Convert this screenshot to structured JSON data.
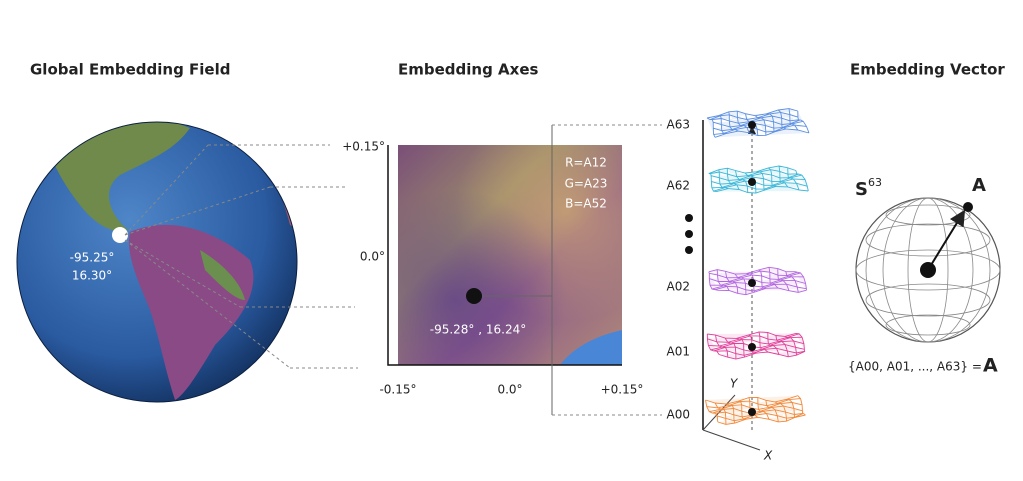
{
  "globe": {
    "title": "Global Embedding Field",
    "point_lon": "-95.25°",
    "point_lat": "16.30°"
  },
  "axes": {
    "title": "Embedding Axes",
    "y_ticks": [
      "+0.15°",
      "0.0°"
    ],
    "x_ticks": [
      "-0.15°",
      "0.0°",
      "+0.15°"
    ],
    "channels": [
      "R=A12",
      "G=A23",
      "B=A52"
    ],
    "point_label": "-95.28° , 16.24°"
  },
  "layers": {
    "labels": [
      "A63",
      "A62",
      "A02",
      "A01",
      "A00"
    ],
    "axis_x": "X",
    "axis_y": "Y"
  },
  "vector": {
    "title": "Embedding Vector",
    "sphere_label": "S",
    "sphere_exponent": "63",
    "point_label": "A",
    "equation": "{A00, A01, ..., A63} =",
    "equation_result": "A"
  }
}
